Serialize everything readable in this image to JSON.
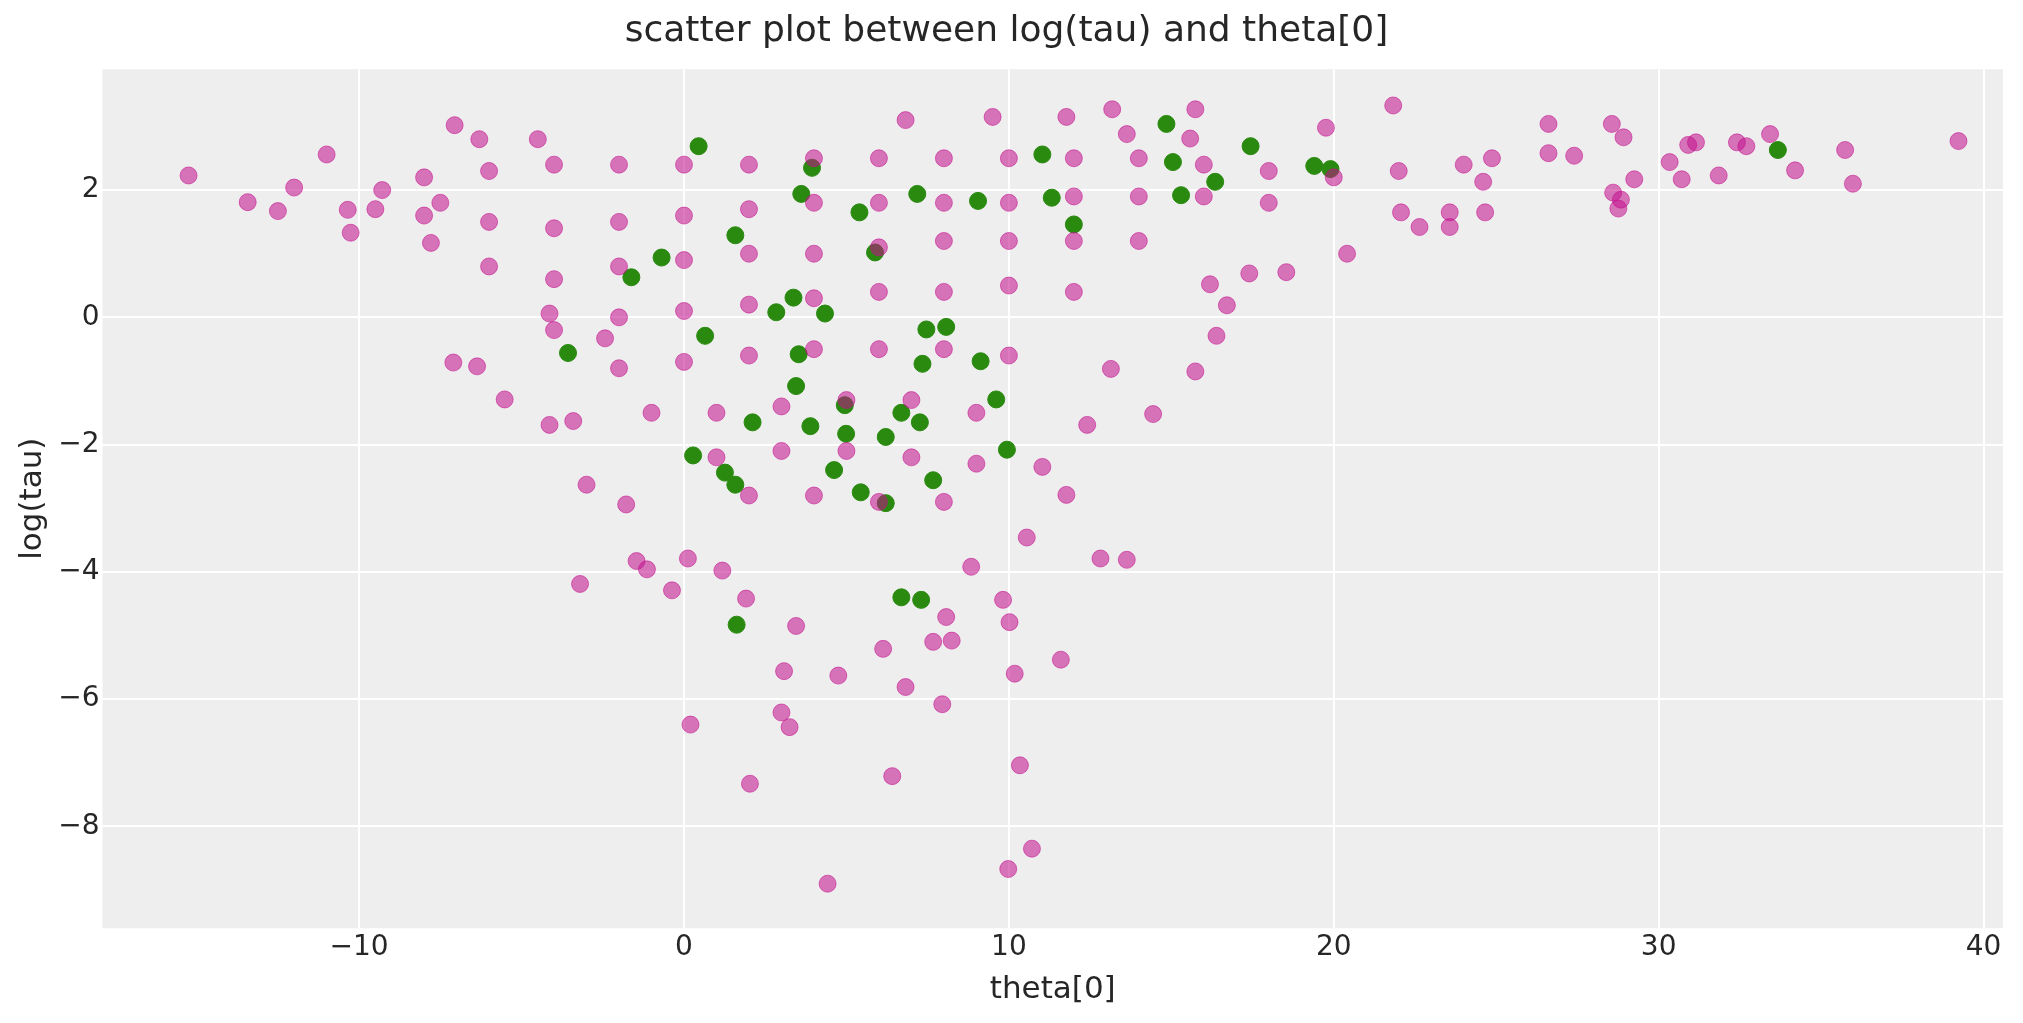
{
  "chart_data": {
    "type": "scatter",
    "title": "scatter plot between log(tau) and theta[0]",
    "xlabel": "theta[0]",
    "ylabel": "log(tau)",
    "xlim": [
      -17.9,
      40.6
    ],
    "ylim": [
      -9.6,
      3.9
    ],
    "xticks": [
      {
        "value": -10,
        "label": "−10"
      },
      0,
      10,
      20,
      30,
      40
    ],
    "yticks": [
      {
        "value": -8,
        "label": "−8"
      },
      {
        "value": -6,
        "label": "−6"
      },
      {
        "value": -4,
        "label": "−4"
      },
      {
        "value": -2,
        "label": "−2"
      },
      0,
      2
    ],
    "grid": true,
    "legend": false,
    "marker": "circle",
    "series": [
      {
        "color": "#c20e8c",
        "x": [
          -15.25,
          -13.43,
          -12.5,
          -12.0,
          -11.0,
          -10.35,
          -10.26,
          -9.29,
          -7.79,
          -7.06,
          -7.1,
          -6.37,
          -5.52,
          -4.14,
          -4.14,
          -3.2,
          -3.0,
          -3.41,
          -2.43,
          -1.78,
          -1.46,
          -1.14,
          -0.37,
          0.12,
          0.2,
          1.18,
          1.91,
          2.03,
          3.08,
          3.0,
          3.25,
          3.45,
          4.42,
          4.75,
          6.13,
          6.41,
          6.82,
          7.95,
          7.67,
          8.24,
          8.07,
          8.84,
          9.82,
          10.02,
          9.98,
          10.34,
          10.18,
          10.71,
          10.55,
          11.6,
          11.03,
          11.77,
          12.82,
          13.63,
          12.41,
          13.14,
          14.44,
          15.74,
          16.39,
          16.19,
          16.71,
          17.4,
          18.54,
          20.41,
          21.83,
          22.64,
          23.57,
          22.07,
          26.61,
          26.61,
          27.4,
          28.6,
          28.56,
          28.92,
          28.76,
          28.84,
          29.25,
          30.34,
          30.71,
          30.91,
          31.15,
          31.85,
          32.41,
          32.7,
          33.43,
          34.2,
          35.74,
          35.98,
          39.23,
          24.87,
          23.57,
          24.66,
          24.6,
          6.82,
          9.5,
          11.77,
          13.18,
          15.74,
          19.76,
          15.58,
          13.63,
          -8,
          -6,
          -4,
          -2,
          0,
          2,
          4,
          6,
          8,
          10,
          12,
          14,
          16,
          18,
          20,
          22,
          24,
          -8,
          -6,
          -4,
          -2,
          0,
          2,
          4,
          6,
          8,
          10,
          12,
          14,
          16,
          18,
          -6,
          -4,
          -2,
          0,
          2,
          4,
          6,
          8,
          10,
          12,
          14,
          -4,
          -2,
          0,
          2,
          4,
          6,
          8,
          10,
          12,
          -2,
          0,
          2,
          4,
          6,
          8,
          10,
          -1,
          1,
          3,
          5,
          7,
          9,
          1,
          3,
          5,
          7,
          9,
          2,
          4,
          6,
          8,
          -6.3,
          -4.5,
          -7.5,
          -9.5
        ],
        "values": [
          2.23,
          1.81,
          1.67,
          2.04,
          2.56,
          1.69,
          1.33,
          2.0,
          1.17,
          3.02,
          -0.71,
          -0.77,
          -1.29,
          0.06,
          -1.69,
          -4.19,
          -2.63,
          -1.63,
          -0.33,
          -2.94,
          -3.83,
          -3.96,
          -4.29,
          -3.79,
          -6.4,
          -3.98,
          -4.42,
          -7.33,
          -5.56,
          -6.21,
          -6.44,
          -4.85,
          -8.9,
          -5.63,
          -5.21,
          -7.21,
          -5.81,
          -6.08,
          -5.1,
          -5.08,
          -4.71,
          -3.92,
          -4.44,
          -4.79,
          -8.67,
          -7.04,
          -5.6,
          -8.35,
          -3.46,
          -5.38,
          -2.35,
          -2.79,
          -3.79,
          -3.81,
          -1.69,
          -0.81,
          -1.52,
          -0.85,
          -0.29,
          0.52,
          0.19,
          0.69,
          0.71,
          1.0,
          3.33,
          1.42,
          1.65,
          1.65,
          2.58,
          3.04,
          2.54,
          1.96,
          3.04,
          2.83,
          1.71,
          1.85,
          2.17,
          2.44,
          2.17,
          2.71,
          2.75,
          2.23,
          2.75,
          2.69,
          2.88,
          2.31,
          2.63,
          2.1,
          2.77,
          2.5,
          1.42,
          1.65,
          2.13,
          3.1,
          3.15,
          3.15,
          3.27,
          3.27,
          2.98,
          2.81,
          2.88,
          2.2,
          2.3,
          2.4,
          2.4,
          2.4,
          2.4,
          2.5,
          2.5,
          2.5,
          2.5,
          2.5,
          2.5,
          2.4,
          2.3,
          2.2,
          2.3,
          2.4,
          1.6,
          1.5,
          1.4,
          1.5,
          1.6,
          1.7,
          1.8,
          1.8,
          1.8,
          1.8,
          1.9,
          1.9,
          1.9,
          1.8,
          0.8,
          0.6,
          0.8,
          0.9,
          1.0,
          1.0,
          1.1,
          1.2,
          1.2,
          1.2,
          1.2,
          -0.2,
          0,
          0.1,
          0.2,
          0.3,
          0.4,
          0.4,
          0.5,
          0.4,
          -0.8,
          -0.7,
          -0.6,
          -0.5,
          -0.5,
          -0.5,
          -0.6,
          -1.5,
          -1.5,
          -1.4,
          -1.3,
          -1.3,
          -1.5,
          -2.2,
          -2.1,
          -2.1,
          -2.2,
          -2.3,
          -2.8,
          -2.8,
          -2.9,
          -2.9,
          2.8,
          2.8,
          1.8,
          1.7
        ]
      },
      {
        "color": "#2a8a10",
        "x": [
          0.45,
          14.85,
          33.67,
          17.44,
          19.4,
          19.9,
          15.05,
          15.3,
          16.35,
          11.03,
          3.94,
          3.61,
          7.18,
          9.05,
          11.32,
          12.0,
          5.4,
          5.88,
          1.58,
          -0.69,
          -1.62,
          3.37,
          2.84,
          4.34,
          0.65,
          -3.57,
          3.53,
          7.46,
          8.07,
          7.34,
          9.13,
          3.45,
          4.95,
          9.61,
          6.69,
          2.11,
          3.89,
          4.99,
          6.21,
          7.26,
          9.94,
          0.28,
          1.26,
          1.58,
          4.62,
          5.44,
          6.21,
          7.67,
          1.62,
          6.69,
          7.3
        ],
        "values": [
          2.69,
          3.04,
          2.63,
          2.69,
          2.38,
          2.33,
          2.44,
          1.92,
          2.13,
          2.56,
          2.35,
          1.94,
          1.94,
          1.83,
          1.88,
          1.46,
          1.65,
          1.02,
          1.29,
          0.94,
          0.63,
          0.31,
          0.08,
          0.06,
          -0.29,
          -0.56,
          -0.58,
          -0.19,
          -0.15,
          -0.73,
          -0.69,
          -1.08,
          -1.38,
          -1.29,
          -1.5,
          -1.65,
          -1.71,
          -1.83,
          -1.88,
          -1.65,
          -2.08,
          -2.17,
          -2.44,
          -2.63,
          -2.4,
          -2.75,
          -2.92,
          -2.56,
          -4.83,
          -4.4,
          -4.44
        ]
      }
    ]
  }
}
